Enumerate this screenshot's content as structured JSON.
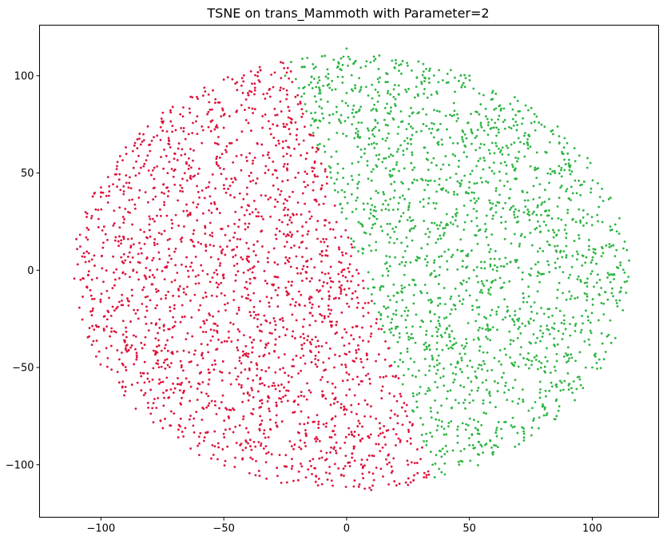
{
  "chart_data": {
    "type": "scatter",
    "title": "TSNE on trans_Mammoth with Parameter=2",
    "xlabel": "",
    "ylabel": "",
    "xlim": [
      -125,
      127
    ],
    "ylim": [
      -127,
      126
    ],
    "x_ticks": [
      -100,
      -50,
      0,
      50,
      100
    ],
    "y_ticks": [
      -100,
      -50,
      0,
      50,
      100
    ],
    "x_tick_labels": [
      "−100",
      "−50",
      "0",
      "50",
      "100"
    ],
    "y_tick_labels": [
      "−100",
      "−50",
      "0",
      "50",
      "100"
    ],
    "grid": false,
    "legend": "none",
    "point_count_per_series": 2000,
    "series": [
      {
        "color": "#dc143c",
        "region": "left portion of ellipse (x below boundary line)",
        "sample_points": [
          [
            -110,
            16
          ],
          [
            -100,
            40
          ],
          [
            -90,
            -60
          ],
          [
            -50,
            98
          ],
          [
            -40,
            90
          ],
          [
            -60,
            -95
          ],
          [
            -30,
            75
          ],
          [
            -20,
            20
          ],
          [
            -10,
            -110
          ],
          [
            10,
            -113
          ],
          [
            20,
            -90
          ],
          [
            25,
            -100
          ],
          [
            15,
            -55
          ],
          [
            -5,
            -50
          ],
          [
            -80,
            0
          ],
          [
            -70,
            60
          ]
        ]
      },
      {
        "color": "#2cb542",
        "region": "right portion of ellipse (x above boundary line)",
        "sample_points": [
          [
            -25,
            100
          ],
          [
            -10,
            110
          ],
          [
            0,
            114
          ],
          [
            20,
            108
          ],
          [
            50,
            100
          ],
          [
            90,
            60
          ],
          [
            110,
            20
          ],
          [
            115,
            5
          ],
          [
            100,
            -50
          ],
          [
            80,
            -70
          ],
          [
            60,
            -90
          ],
          [
            40,
            -105
          ],
          [
            35,
            -100
          ],
          [
            30,
            -60
          ],
          [
            20,
            -30
          ],
          [
            10,
            10
          ]
        ]
      }
    ],
    "cloud_shape": {
      "center": [
        2,
        -1
      ],
      "radius_x": 113,
      "radius_y": 112,
      "boundary_line_x_at_y_100": -22,
      "boundary_line_x_at_y_minus_100": 34
    }
  }
}
